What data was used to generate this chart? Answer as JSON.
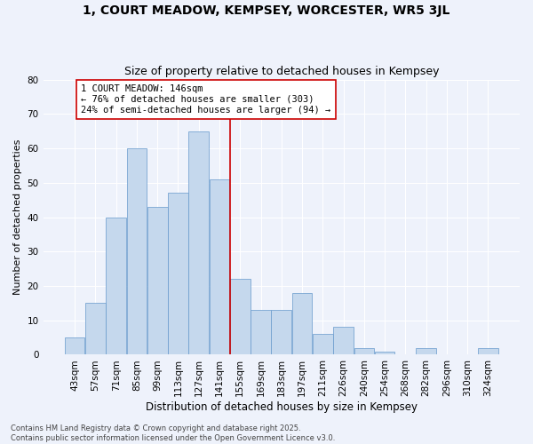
{
  "title": "1, COURT MEADOW, KEMPSEY, WORCESTER, WR5 3JL",
  "subtitle": "Size of property relative to detached houses in Kempsey",
  "xlabel": "Distribution of detached houses by size in Kempsey",
  "ylabel": "Number of detached properties",
  "bar_color": "#c5d8ed",
  "bar_edge_color": "#6699cc",
  "background_color": "#eef2fb",
  "grid_color": "#ffffff",
  "categories": [
    "43sqm",
    "57sqm",
    "71sqm",
    "85sqm",
    "99sqm",
    "113sqm",
    "127sqm",
    "141sqm",
    "155sqm",
    "169sqm",
    "183sqm",
    "197sqm",
    "211sqm",
    "226sqm",
    "240sqm",
    "254sqm",
    "268sqm",
    "282sqm",
    "296sqm",
    "310sqm",
    "324sqm"
  ],
  "values": [
    5,
    15,
    40,
    60,
    43,
    47,
    65,
    51,
    22,
    13,
    13,
    18,
    6,
    8,
    2,
    1,
    0,
    2,
    0,
    0,
    2
  ],
  "ylim": [
    0,
    80
  ],
  "yticks": [
    0,
    10,
    20,
    30,
    40,
    50,
    60,
    70,
    80
  ],
  "vline_color": "#cc0000",
  "annotation_text": "1 COURT MEADOW: 146sqm\n← 76% of detached houses are smaller (303)\n24% of semi-detached houses are larger (94) →",
  "annotation_box_color": "#ffffff",
  "annotation_box_edge": "#cc0000",
  "footer": "Contains HM Land Registry data © Crown copyright and database right 2025.\nContains public sector information licensed under the Open Government Licence v3.0.",
  "title_fontsize": 10,
  "subtitle_fontsize": 9,
  "xlabel_fontsize": 8.5,
  "ylabel_fontsize": 8,
  "tick_fontsize": 7.5,
  "annotation_fontsize": 7.5,
  "footer_fontsize": 6
}
